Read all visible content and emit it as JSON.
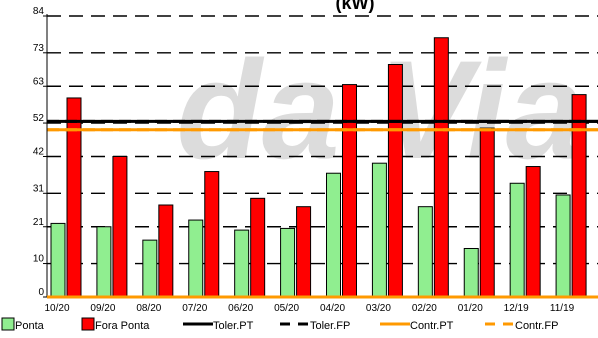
{
  "watermark": "da Via",
  "chart_data": {
    "type": "bar",
    "title": "(kW)",
    "xlabel": "",
    "ylabel": "",
    "ylim": [
      0,
      84
    ],
    "yticks": [
      0,
      10,
      21,
      31,
      42,
      52,
      63,
      73,
      84
    ],
    "grid": true,
    "categories": [
      "10/20",
      "09/20",
      "08/20",
      "07/20",
      "06/20",
      "05/20",
      "04/20",
      "03/20",
      "02/20",
      "01/20",
      "12/19",
      "11/19"
    ],
    "series": [
      {
        "name": "Ponta",
        "color": "#90ee90",
        "values": [
          22,
          21,
          17,
          23,
          20,
          20.5,
          37,
          40,
          27,
          14.5,
          34,
          30.5
        ]
      },
      {
        "name": "Fora Ponta",
        "color": "#ff0000",
        "values": [
          59.5,
          42,
          27.5,
          37.5,
          29.5,
          27,
          63.5,
          69.5,
          77.5,
          50.5,
          39,
          60.5
        ]
      }
    ],
    "reference_lines": [
      {
        "name": "Toler.PT",
        "value": 52.5,
        "color": "#000000",
        "style": "solid"
      },
      {
        "name": "Toler.FP",
        "value": 52.5,
        "color": "#000000",
        "style": "dashed"
      },
      {
        "name": "Contr.PT",
        "value": 50,
        "color": "#ff9900",
        "style": "solid"
      },
      {
        "name": "Contr.FP",
        "value": 50,
        "color": "#ff9900",
        "style": "dashed"
      }
    ],
    "legend_position": "bottom"
  }
}
